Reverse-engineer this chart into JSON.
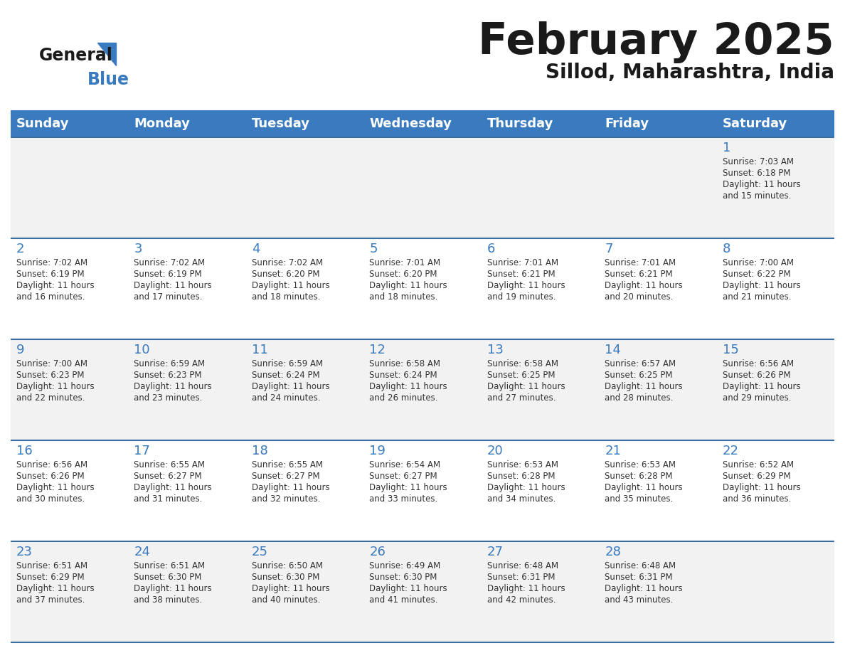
{
  "title": "February 2025",
  "subtitle": "Sillod, Maharashtra, India",
  "header_color": "#3a7abf",
  "header_text_color": "#ffffff",
  "cell_bg_row0": "#f2f2f2",
  "cell_bg_row1": "#ffffff",
  "cell_bg_row2": "#f2f2f2",
  "cell_bg_row3": "#ffffff",
  "cell_bg_row4": "#f2f2f2",
  "day_number_color": "#3a7abf",
  "info_text_color": "#333333",
  "separator_color": "#3a6ea5",
  "days_of_week": [
    "Sunday",
    "Monday",
    "Tuesday",
    "Wednesday",
    "Thursday",
    "Friday",
    "Saturday"
  ],
  "weeks": [
    [
      {
        "day": null
      },
      {
        "day": null
      },
      {
        "day": null
      },
      {
        "day": null
      },
      {
        "day": null
      },
      {
        "day": null
      },
      {
        "day": 1,
        "sunrise": "7:03 AM",
        "sunset": "6:18 PM",
        "daylight": "11 hours and 15 minutes."
      }
    ],
    [
      {
        "day": 2,
        "sunrise": "7:02 AM",
        "sunset": "6:19 PM",
        "daylight": "11 hours and 16 minutes."
      },
      {
        "day": 3,
        "sunrise": "7:02 AM",
        "sunset": "6:19 PM",
        "daylight": "11 hours and 17 minutes."
      },
      {
        "day": 4,
        "sunrise": "7:02 AM",
        "sunset": "6:20 PM",
        "daylight": "11 hours and 18 minutes."
      },
      {
        "day": 5,
        "sunrise": "7:01 AM",
        "sunset": "6:20 PM",
        "daylight": "11 hours and 18 minutes."
      },
      {
        "day": 6,
        "sunrise": "7:01 AM",
        "sunset": "6:21 PM",
        "daylight": "11 hours and 19 minutes."
      },
      {
        "day": 7,
        "sunrise": "7:01 AM",
        "sunset": "6:21 PM",
        "daylight": "11 hours and 20 minutes."
      },
      {
        "day": 8,
        "sunrise": "7:00 AM",
        "sunset": "6:22 PM",
        "daylight": "11 hours and 21 minutes."
      }
    ],
    [
      {
        "day": 9,
        "sunrise": "7:00 AM",
        "sunset": "6:23 PM",
        "daylight": "11 hours and 22 minutes."
      },
      {
        "day": 10,
        "sunrise": "6:59 AM",
        "sunset": "6:23 PM",
        "daylight": "11 hours and 23 minutes."
      },
      {
        "day": 11,
        "sunrise": "6:59 AM",
        "sunset": "6:24 PM",
        "daylight": "11 hours and 24 minutes."
      },
      {
        "day": 12,
        "sunrise": "6:58 AM",
        "sunset": "6:24 PM",
        "daylight": "11 hours and 26 minutes."
      },
      {
        "day": 13,
        "sunrise": "6:58 AM",
        "sunset": "6:25 PM",
        "daylight": "11 hours and 27 minutes."
      },
      {
        "day": 14,
        "sunrise": "6:57 AM",
        "sunset": "6:25 PM",
        "daylight": "11 hours and 28 minutes."
      },
      {
        "day": 15,
        "sunrise": "6:56 AM",
        "sunset": "6:26 PM",
        "daylight": "11 hours and 29 minutes."
      }
    ],
    [
      {
        "day": 16,
        "sunrise": "6:56 AM",
        "sunset": "6:26 PM",
        "daylight": "11 hours and 30 minutes."
      },
      {
        "day": 17,
        "sunrise": "6:55 AM",
        "sunset": "6:27 PM",
        "daylight": "11 hours and 31 minutes."
      },
      {
        "day": 18,
        "sunrise": "6:55 AM",
        "sunset": "6:27 PM",
        "daylight": "11 hours and 32 minutes."
      },
      {
        "day": 19,
        "sunrise": "6:54 AM",
        "sunset": "6:27 PM",
        "daylight": "11 hours and 33 minutes."
      },
      {
        "day": 20,
        "sunrise": "6:53 AM",
        "sunset": "6:28 PM",
        "daylight": "11 hours and 34 minutes."
      },
      {
        "day": 21,
        "sunrise": "6:53 AM",
        "sunset": "6:28 PM",
        "daylight": "11 hours and 35 minutes."
      },
      {
        "day": 22,
        "sunrise": "6:52 AM",
        "sunset": "6:29 PM",
        "daylight": "11 hours and 36 minutes."
      }
    ],
    [
      {
        "day": 23,
        "sunrise": "6:51 AM",
        "sunset": "6:29 PM",
        "daylight": "11 hours and 37 minutes."
      },
      {
        "day": 24,
        "sunrise": "6:51 AM",
        "sunset": "6:30 PM",
        "daylight": "11 hours and 38 minutes."
      },
      {
        "day": 25,
        "sunrise": "6:50 AM",
        "sunset": "6:30 PM",
        "daylight": "11 hours and 40 minutes."
      },
      {
        "day": 26,
        "sunrise": "6:49 AM",
        "sunset": "6:30 PM",
        "daylight": "11 hours and 41 minutes."
      },
      {
        "day": 27,
        "sunrise": "6:48 AM",
        "sunset": "6:31 PM",
        "daylight": "11 hours and 42 minutes."
      },
      {
        "day": 28,
        "sunrise": "6:48 AM",
        "sunset": "6:31 PM",
        "daylight": "11 hours and 43 minutes."
      },
      {
        "day": null
      }
    ]
  ],
  "logo_general_color": "#1a1a1a",
  "logo_blue_color": "#3a7abf",
  "logo_triangle_color": "#3a7abf"
}
